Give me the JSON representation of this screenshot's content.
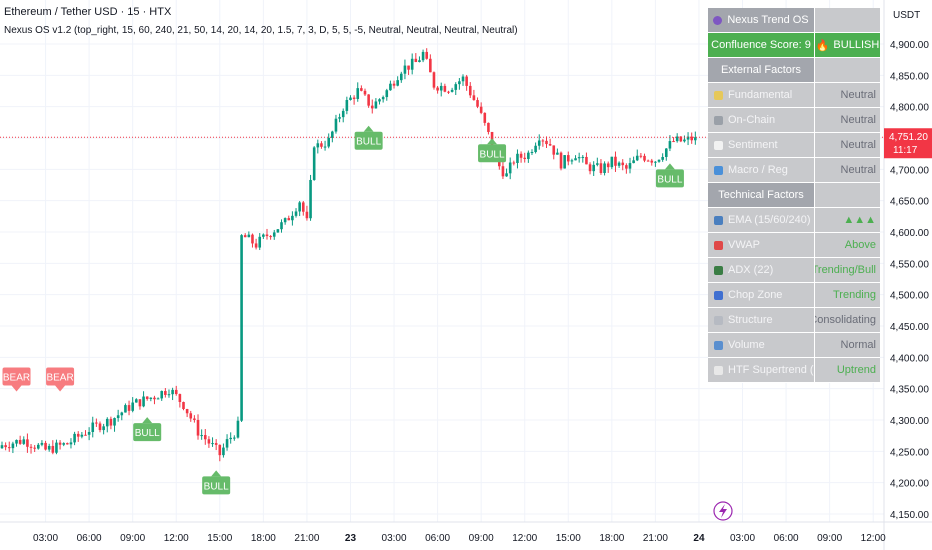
{
  "header": {
    "symbol_title": "Ethereum / Tether USD · 15 · HTX",
    "indicator": "Nexus OS v1.2 (top_right, 15, 60, 240, 21, 50, 14, 20, 14, 20, 1.5, 7, 3, D, 5, 5, -5, Neutral, Neutral, Neutral, Neutral)"
  },
  "panel": {
    "title": "Nexus Trend OS",
    "score_label": "Confluence Score: 9",
    "bias": "BULLISH",
    "external_header": "External Factors",
    "external": [
      {
        "label": "Fundamental",
        "value": "Neutral",
        "icon": "bulb-icon",
        "color": "#e6c85a"
      },
      {
        "label": "On-Chain",
        "value": "Neutral",
        "icon": "chain-icon",
        "color": "#9aa0a8"
      },
      {
        "label": "Sentiment",
        "value": "Neutral",
        "icon": "chat-icon",
        "color": "#f2f2f2"
      },
      {
        "label": "Macro / Reg",
        "value": "Neutral",
        "icon": "globe-icon",
        "color": "#4a90d9"
      }
    ],
    "technical_header": "Technical Factors",
    "technical": [
      {
        "label": "EMA (15/60/240)",
        "value": "▲▲▲",
        "icon": "ema-icon",
        "color": "#4a7fbf",
        "bull": true
      },
      {
        "label": "VWAP",
        "value": "Above",
        "icon": "pin-icon",
        "color": "#e04848",
        "bull": true
      },
      {
        "label": "ADX (22)",
        "value": "Trending/Bull",
        "icon": "bar-chart-icon",
        "color": "#3a7d44",
        "bull": true
      },
      {
        "label": "Chop Zone",
        "value": "Trending",
        "icon": "spiral-icon",
        "color": "#3f6fd1",
        "bull": true
      },
      {
        "label": "Structure",
        "value": "Consolidating",
        "icon": "structure-icon",
        "color": "#b6bac2",
        "bull": false
      },
      {
        "label": "Volume",
        "value": "Normal",
        "icon": "volume-icon",
        "color": "#5a8fcf",
        "bull": false
      },
      {
        "label": "HTF Supertrend (D)",
        "value": "Uptrend",
        "icon": "clock-icon",
        "color": "#e8e8e8",
        "bull": true
      }
    ]
  },
  "chart_data": {
    "type": "candlestick",
    "quote_currency": "USDT",
    "price_ticks": [
      "4,900.00",
      "4,850.00",
      "4,800.00",
      "4,750.00",
      "4,700.00",
      "4,650.00",
      "4,600.00",
      "4,550.00",
      "4,500.00",
      "4,450.00",
      "4,400.00",
      "4,350.00",
      "4,300.00",
      "4,250.00",
      "4,200.00",
      "4,150.00"
    ],
    "ylim": [
      4135,
      4925
    ],
    "time_ticks": [
      {
        "label": "03:00",
        "t": 12
      },
      {
        "label": "06:00",
        "t": 24
      },
      {
        "label": "09:00",
        "t": 36
      },
      {
        "label": "12:00",
        "t": 48
      },
      {
        "label": "15:00",
        "t": 60
      },
      {
        "label": "18:00",
        "t": 72
      },
      {
        "label": "21:00",
        "t": 84
      },
      {
        "label": "23",
        "t": 96,
        "bold": true
      },
      {
        "label": "03:00",
        "t": 108
      },
      {
        "label": "06:00",
        "t": 120
      },
      {
        "label": "09:00",
        "t": 132
      },
      {
        "label": "12:00",
        "t": 144
      },
      {
        "label": "15:00",
        "t": 156
      },
      {
        "label": "18:00",
        "t": 168
      },
      {
        "label": "21:00",
        "t": 180
      },
      {
        "label": "24",
        "t": 192,
        "bold": true
      },
      {
        "label": "03:00",
        "t": 204
      },
      {
        "label": "06:00",
        "t": 216
      },
      {
        "label": "09:00",
        "t": 228
      },
      {
        "label": "12:00",
        "t": 240
      }
    ],
    "last_price": {
      "value": 4751.2,
      "label": "4,751.20",
      "countdown": "11:17"
    },
    "signals": [
      {
        "text": "BEAR",
        "t": 4,
        "price": 4355,
        "kind": "bear"
      },
      {
        "text": "BEAR",
        "t": 16,
        "price": 4355,
        "kind": "bear"
      },
      {
        "text": "BULL",
        "t": 40,
        "price": 4295,
        "kind": "bull"
      },
      {
        "text": "BULL",
        "t": 59,
        "price": 4210,
        "kind": "bull"
      },
      {
        "text": "BULL",
        "t": 101,
        "price": 4760,
        "kind": "bull"
      },
      {
        "text": "BULL",
        "t": 135,
        "price": 4740,
        "kind": "bull"
      },
      {
        "text": "BULL",
        "t": 184,
        "price": 4700,
        "kind": "bull"
      }
    ],
    "path": [
      [
        0,
        4260
      ],
      [
        6,
        4268
      ],
      [
        12,
        4252
      ],
      [
        18,
        4262
      ],
      [
        24,
        4285
      ],
      [
        30,
        4300
      ],
      [
        36,
        4325
      ],
      [
        42,
        4338
      ],
      [
        46,
        4350
      ],
      [
        50,
        4325
      ],
      [
        54,
        4282
      ],
      [
        58,
        4258
      ],
      [
        60,
        4245
      ],
      [
        62,
        4265
      ],
      [
        64,
        4280
      ],
      [
        65,
        4290
      ],
      [
        66,
        4595
      ],
      [
        70,
        4580
      ],
      [
        74,
        4600
      ],
      [
        78,
        4615
      ],
      [
        82,
        4650
      ],
      [
        84,
        4615
      ],
      [
        86,
        4735
      ],
      [
        90,
        4745
      ],
      [
        94,
        4800
      ],
      [
        98,
        4825
      ],
      [
        102,
        4800
      ],
      [
        106,
        4825
      ],
      [
        110,
        4860
      ],
      [
        114,
        4870
      ],
      [
        116,
        4885
      ],
      [
        119,
        4835
      ],
      [
        123,
        4830
      ],
      [
        127,
        4845
      ],
      [
        131,
        4800
      ],
      [
        134,
        4755
      ],
      [
        137,
        4705
      ],
      [
        139,
        4690
      ],
      [
        141,
        4715
      ],
      [
        145,
        4725
      ],
      [
        148,
        4755
      ],
      [
        151,
        4740
      ],
      [
        154,
        4710
      ],
      [
        158,
        4725
      ],
      [
        161,
        4705
      ],
      [
        165,
        4700
      ],
      [
        168,
        4712
      ],
      [
        172,
        4700
      ],
      [
        176,
        4722
      ],
      [
        180,
        4715
      ],
      [
        185,
        4745
      ],
      [
        188,
        4745
      ],
      [
        191,
        4751
      ]
    ],
    "open_start": 4255,
    "seed": 7,
    "end_t": 191
  }
}
